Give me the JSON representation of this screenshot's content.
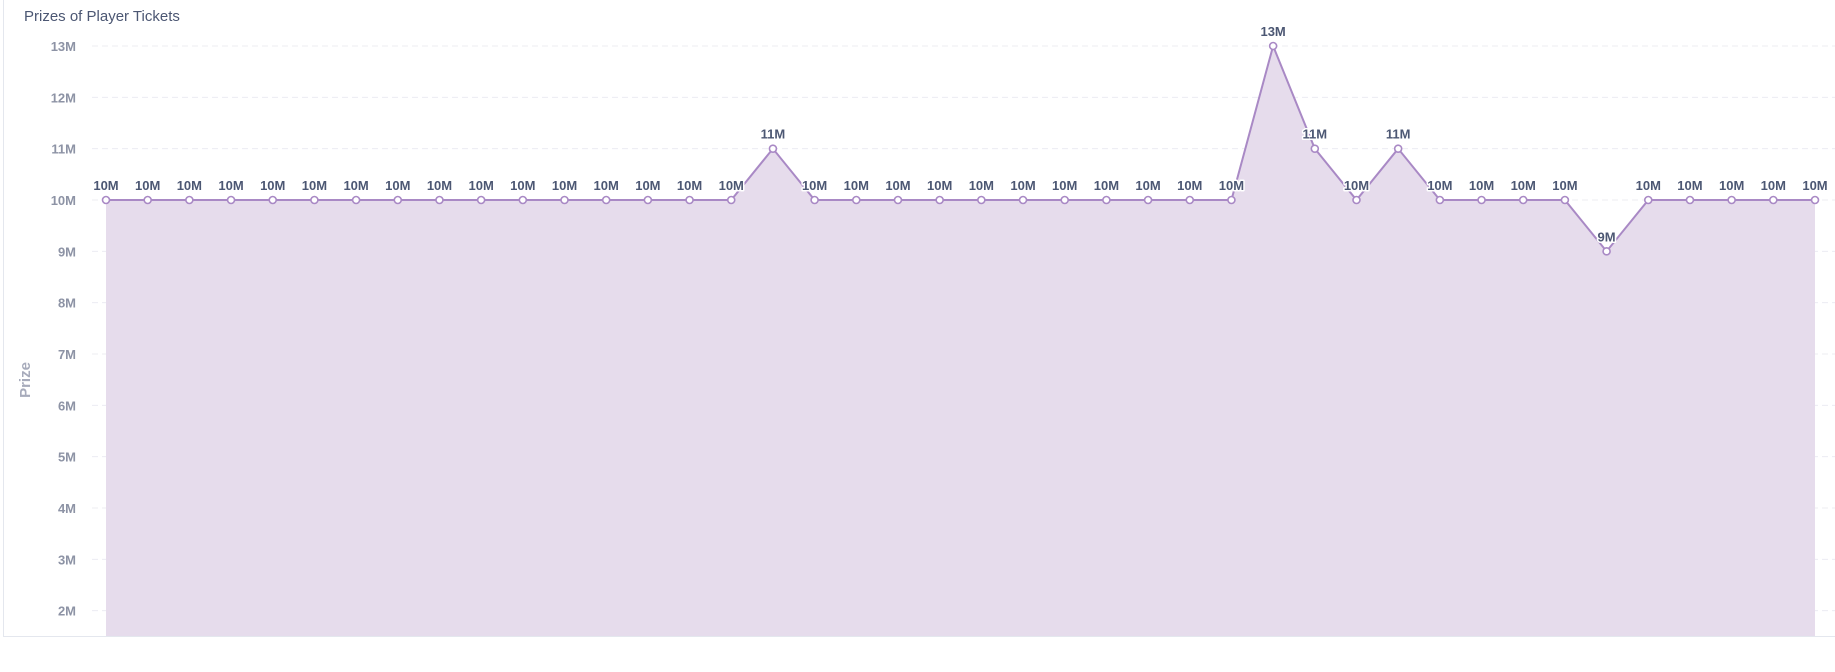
{
  "card": {
    "title": "Prizes of Player Tickets"
  },
  "chart_data": {
    "type": "area",
    "title": "Prizes of Player Tickets",
    "xlabel": "",
    "ylabel": "Prize",
    "ylim": [
      1500000,
      13000000
    ],
    "yticks": [
      13000000,
      12000000,
      11000000,
      10000000,
      9000000,
      8000000,
      7000000,
      6000000,
      5000000,
      4000000,
      3000000,
      2000000
    ],
    "ytick_labels": [
      "13M",
      "12M",
      "11M",
      "10M",
      "9M",
      "8M",
      "7M",
      "6M",
      "5M",
      "4M",
      "3M",
      "2M"
    ],
    "grid": true,
    "color": "#a989c5",
    "fill_color": "#e6dcec",
    "values": [
      10000000,
      10000000,
      10000000,
      10000000,
      10000000,
      10000000,
      10000000,
      10000000,
      10000000,
      10000000,
      10000000,
      10000000,
      10000000,
      10000000,
      10000000,
      10000000,
      11000000,
      10000000,
      10000000,
      10000000,
      10000000,
      10000000,
      10000000,
      10000000,
      10000000,
      10000000,
      10000000,
      10000000,
      13000000,
      11000000,
      10000000,
      11000000,
      10000000,
      10000000,
      10000000,
      10000000,
      9000000,
      10000000,
      10000000,
      10000000,
      10000000,
      10000000
    ],
    "data_labels": [
      "10M",
      "10M",
      "10M",
      "10M",
      "10M",
      "10M",
      "10M",
      "10M",
      "10M",
      "10M",
      "10M",
      "10M",
      "10M",
      "10M",
      "10M",
      "10M",
      "11M",
      "10M",
      "10M",
      "10M",
      "10M",
      "10M",
      "10M",
      "10M",
      "10M",
      "10M",
      "10M",
      "10M",
      "13M",
      "11M",
      "10M",
      "11M",
      "10M",
      "10M",
      "10M",
      "10M",
      "9M",
      "10M",
      "10M",
      "10M",
      "10M",
      "10M"
    ]
  }
}
